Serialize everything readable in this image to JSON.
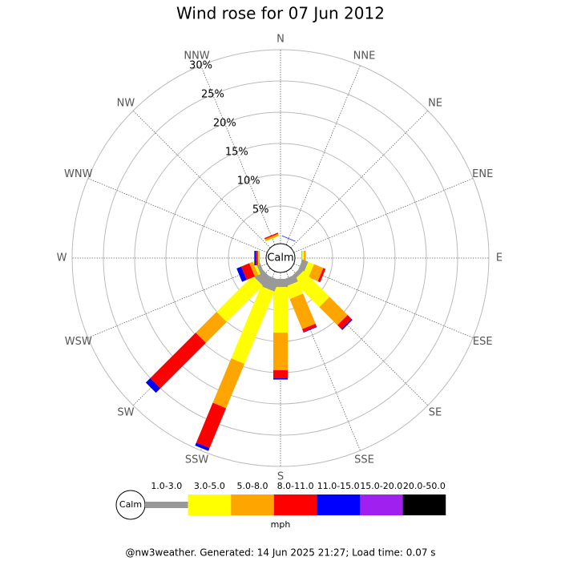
{
  "chart_data": {
    "type": "windrose",
    "title": "Wind rose for 07 Jun 2012",
    "directions": [
      "N",
      "NNE",
      "NE",
      "ENE",
      "E",
      "ESE",
      "SE",
      "SSE",
      "S",
      "SSW",
      "SW",
      "WSW",
      "W",
      "WNW",
      "NW",
      "NNW"
    ],
    "series": [
      {
        "name": "1.0-3.0",
        "color": "#999999",
        "values": [
          0,
          0,
          0,
          0,
          0.1,
          1,
          0.7,
          1.2,
          1.3,
          2,
          1.8,
          0.6,
          0.1,
          0,
          0,
          0
        ]
      },
      {
        "name": "3.0-5.0",
        "color": "#ffff00",
        "values": [
          0,
          0,
          0,
          0,
          0.3,
          1,
          5.9,
          2.1,
          7.3,
          12.5,
          8.2,
          0.4,
          0.1,
          0,
          0,
          0.1
        ]
      },
      {
        "name": "5.0-8.0",
        "color": "#ffa500",
        "values": [
          0,
          0,
          0,
          0,
          0.3,
          1.6,
          4.1,
          5.2,
          6,
          7.7,
          4.7,
          0.6,
          0.1,
          0,
          0,
          0.3
        ]
      },
      {
        "name": "8.0-11.0",
        "color": "#ff0000",
        "values": [
          0,
          0,
          0,
          0,
          0,
          0.4,
          0.9,
          0.5,
          1.3,
          6.9,
          10.3,
          1.4,
          0.3,
          0,
          0,
          0.2
        ]
      },
      {
        "name": "11.0-15.0",
        "color": "#0000ff",
        "values": [
          0,
          0.1,
          0,
          0,
          0,
          0,
          0.2,
          0.1,
          0.2,
          0.5,
          1,
          0.8,
          0.2,
          0,
          0,
          0
        ]
      },
      {
        "name": "15.0-20.0",
        "color": "#a020f0",
        "values": [
          0,
          0,
          0,
          0,
          0,
          0,
          0,
          0,
          0,
          0,
          0,
          0,
          0.1,
          0,
          0,
          0
        ]
      },
      {
        "name": "20.0-50.0",
        "color": "#000000",
        "values": [
          0,
          0,
          0,
          0,
          0,
          0,
          0,
          0,
          0,
          0,
          0,
          0,
          0,
          0,
          0,
          0
        ]
      }
    ],
    "rlim": [
      0,
      30
    ],
    "rticks": [
      {
        "value": 5,
        "label": "5%"
      },
      {
        "value": 10,
        "label": "10%"
      },
      {
        "value": 15,
        "label": "15%"
      },
      {
        "value": 20,
        "label": "20%"
      },
      {
        "value": 25,
        "label": "25%"
      },
      {
        "value": 30,
        "label": "30%"
      }
    ],
    "calm_label": "Calm",
    "unit": "mph",
    "footer": "@nw3weather. Generated: 14 Jun 2025 21:27; Load time: 0.07 s"
  }
}
